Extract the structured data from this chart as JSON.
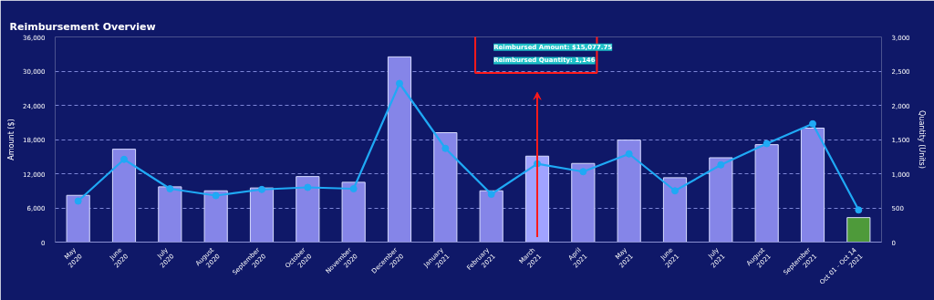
{
  "chart_data": {
    "type": "bar",
    "title": "Reimbursement Overview",
    "ylabel": "Amount ($)",
    "y2label": "Quantity (Units)",
    "categories": [
      "May 2020",
      "June 2020",
      "July 2020",
      "August 2020",
      "September 2020",
      "October 2020",
      "November 2020",
      "December 2020",
      "January 2021",
      "February 2021",
      "March 2021",
      "April 2021",
      "May 2021",
      "June 2021",
      "July 2021",
      "August 2021",
      "September 2021",
      "Oct 01 - Oct 14 2021"
    ],
    "series": [
      {
        "colors": [
          "#8585e8",
          "#8585e8",
          "#8585e8",
          "#8585e8",
          "#8585e8",
          "#8585e8",
          "#8585e8",
          "#8585e8",
          "#8585e8",
          "#8585e8",
          "#a0a3ff",
          "#8585e8",
          "#8585e8",
          "#8585e8",
          "#8585e8",
          "#8585e8",
          "#8585e8",
          "#4e9a3a"
        ],
        "values": [
          8200,
          16300,
          9700,
          9000,
          9500,
          11500,
          10500,
          32500,
          19200,
          9000,
          15077.75,
          13800,
          17900,
          11300,
          14800,
          17100,
          20000,
          4300
        ]
      },
      {
        "type": "line",
        "axis": "y2",
        "color": "#1fa9f5",
        "marker": "circle",
        "values": [
          600,
          1210,
          780,
          680,
          770,
          800,
          780,
          2320,
          1370,
          700,
          1146,
          1030,
          1290,
          750,
          1130,
          1440,
          1730,
          470
        ]
      }
    ],
    "ylim": [
      0,
      36000
    ],
    "yticks": [
      0,
      {
        "value": 6000,
        "label": "6,000"
      },
      {
        "value": 12000,
        "label": "12,000"
      },
      {
        "value": 18000,
        "label": "18,000"
      },
      {
        "value": 24000,
        "label": "24,000"
      },
      {
        "value": 30000,
        "label": "30,000"
      },
      {
        "value": 36000,
        "label": "36,000"
      }
    ],
    "y2lim": [
      0,
      3000
    ],
    "y2ticks": [
      0,
      500,
      {
        "value": 1000,
        "label": "1,000"
      },
      {
        "value": 1500,
        "label": "1,500"
      },
      {
        "value": 2000,
        "label": "2,000"
      },
      {
        "value": 2500,
        "label": "2,500"
      },
      {
        "value": 3000,
        "label": "3,000"
      }
    ],
    "grid": "y",
    "line_style": "solid",
    "annotations": [
      "Reimbursed Amount: $15,077.75",
      "Reimbursed Quantity: 1,146"
    ]
  }
}
